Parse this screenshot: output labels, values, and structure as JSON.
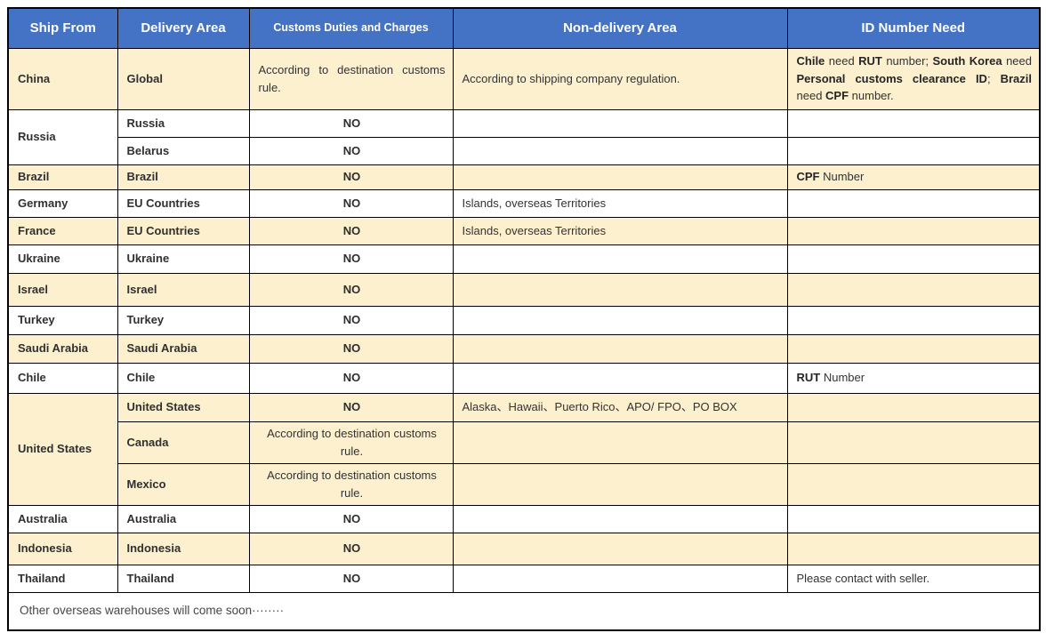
{
  "title": "Shipping information table",
  "colors": {
    "header_bg": "#4472C4",
    "header_text": "#FFFFFF",
    "highlight_row_bg": "#FDF0CE",
    "border": "#000000",
    "body_text": "#333333"
  },
  "header": {
    "ship_from": "Ship From",
    "delivery_area": "Delivery Area",
    "customs_duties": "Customs Duties and Charges",
    "non_delivery_area": "Non-delivery Area",
    "id_number_need": "ID Number Need"
  },
  "rows": {
    "china": {
      "ship_from": "China",
      "delivery_area": "Global",
      "customs": "According to destination customs rule.",
      "non_delivery": "According to shipping company regulation.",
      "id_need": {
        "b1": "Chile",
        "t1": " need ",
        "b2": "RUT",
        "t2": " number; ",
        "b3": "South Korea",
        "t3": " need ",
        "b4": "Personal customs clearance ID",
        "t4": "; ",
        "b5": "Brazil",
        "t5": " need ",
        "b6": "CPF",
        "t6": " number."
      }
    },
    "russia": {
      "ship_from": "Russia",
      "sub_russia": {
        "delivery_area": "Russia",
        "customs": "NO"
      },
      "sub_belarus": {
        "delivery_area": "Belarus",
        "customs": "NO"
      }
    },
    "brazil": {
      "ship_from": "Brazil",
      "delivery_area": "Brazil",
      "customs": "NO",
      "id_need": {
        "b": "CPF",
        "t": " Number"
      }
    },
    "germany": {
      "ship_from": "Germany",
      "delivery_area": "EU Countries",
      "customs": "NO",
      "non_delivery": "Islands, overseas Territories"
    },
    "france": {
      "ship_from": "France",
      "delivery_area": "EU Countries",
      "customs": "NO",
      "non_delivery": "Islands, overseas Territories"
    },
    "ukraine": {
      "ship_from": "Ukraine",
      "delivery_area": "Ukraine",
      "customs": "NO"
    },
    "israel": {
      "ship_from": "Israel",
      "delivery_area": "Israel",
      "customs": "NO"
    },
    "turkey": {
      "ship_from": "Turkey",
      "delivery_area": "Turkey",
      "customs": "NO"
    },
    "saudi_arabia": {
      "ship_from": "Saudi Arabia",
      "delivery_area": "Saudi Arabia",
      "customs": "NO"
    },
    "chile": {
      "ship_from": "Chile",
      "delivery_area": "Chile",
      "customs": "NO",
      "id_need": {
        "b": "RUT",
        "t": " Number"
      }
    },
    "united_states": {
      "ship_from": "United States",
      "sub_us": {
        "delivery_area": "United States",
        "customs": "NO",
        "non_delivery": "Alaska、Hawaii、Puerto Rico、APO/ FPO、PO BOX"
      },
      "sub_canada": {
        "delivery_area": "Canada",
        "customs": "According to destination customs rule."
      },
      "sub_mexico": {
        "delivery_area": "Mexico",
        "customs": "According to destination customs rule."
      }
    },
    "australia": {
      "ship_from": "Australia",
      "delivery_area": "Australia",
      "customs": "NO"
    },
    "indonesia": {
      "ship_from": "Indonesia",
      "delivery_area": "Indonesia",
      "customs": "NO"
    },
    "thailand": {
      "ship_from": "Thailand",
      "delivery_area": "Thailand",
      "customs": "NO",
      "id_need_plain": "Please contact with seller."
    }
  },
  "footer": {
    "note": "Other overseas warehouses will come soon········"
  }
}
